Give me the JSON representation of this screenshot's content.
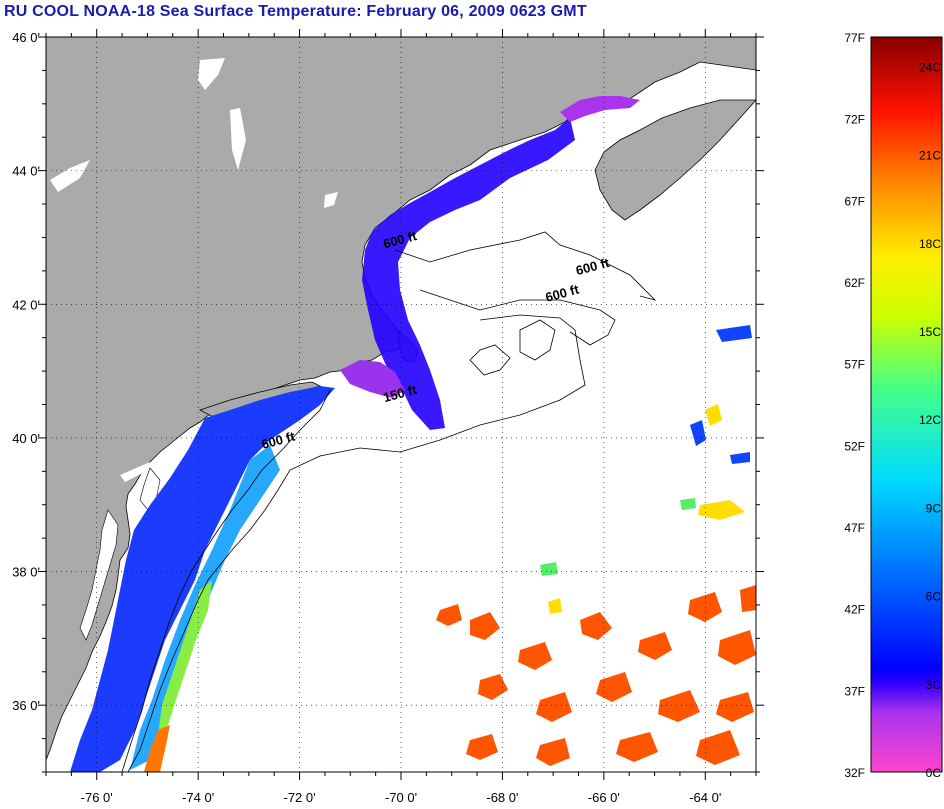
{
  "title": "RU COOL  NOAA-18  Sea Surface Temperature:  February 06, 2009 0623 GMT",
  "map": {
    "lon_range": [
      -77,
      -63
    ],
    "lat_range": [
      35,
      46
    ],
    "lon_ticks": [
      {
        "value": -76,
        "label": "-76 0'"
      },
      {
        "value": -74,
        "label": "-74 0'"
      },
      {
        "value": -72,
        "label": "-72 0'"
      },
      {
        "value": -70,
        "label": "-70 0'"
      },
      {
        "value": -68,
        "label": "-68 0'"
      },
      {
        "value": -66,
        "label": "-66 0'"
      },
      {
        "value": -64,
        "label": "-64 0'"
      }
    ],
    "lat_ticks": [
      {
        "value": 46,
        "label": "46 0'"
      },
      {
        "value": 44,
        "label": "44 0'"
      },
      {
        "value": 42,
        "label": "42 0'"
      },
      {
        "value": 40,
        "label": "40 0'"
      },
      {
        "value": 38,
        "label": "38 0'"
      },
      {
        "value": 36,
        "label": "36 0'"
      }
    ],
    "contour_labels": [
      {
        "text": "600 ft",
        "lon": -70.0,
        "lat": 42.9
      },
      {
        "text": "600 ft",
        "lon": -66.2,
        "lat": 42.5
      },
      {
        "text": "600 ft",
        "lon": -66.8,
        "lat": 42.1
      },
      {
        "text": "150 ft",
        "lon": -70.0,
        "lat": 40.6
      },
      {
        "text": "600 ft",
        "lon": -72.4,
        "lat": 39.9
      }
    ],
    "colors": {
      "land": "#aaaaaa",
      "ocean": "#ffffff",
      "coastline": "#000000",
      "grid": "#000000"
    }
  },
  "colorbar": {
    "range_f": [
      32,
      77
    ],
    "f_labels": [
      "77F",
      "72F",
      "67F",
      "62F",
      "57F",
      "52F",
      "47F",
      "42F",
      "37F",
      "32F"
    ],
    "c_labels": [
      {
        "f": 75.2,
        "label": "24C"
      },
      {
        "f": 69.8,
        "label": "21C"
      },
      {
        "f": 64.4,
        "label": "18C"
      },
      {
        "f": 59.0,
        "label": "15C"
      },
      {
        "f": 53.6,
        "label": "12C"
      },
      {
        "f": 48.2,
        "label": "9C"
      },
      {
        "f": 42.8,
        "label": "6C"
      },
      {
        "f": 37.4,
        "label": "3C"
      },
      {
        "f": 32.0,
        "label": "0C"
      }
    ],
    "stops": [
      "#ff44cc",
      "#9933ee",
      "#0000ff",
      "#0088ff",
      "#00e0ff",
      "#55ff55",
      "#ffff00",
      "#ff9900",
      "#ff2200",
      "#880000"
    ]
  }
}
